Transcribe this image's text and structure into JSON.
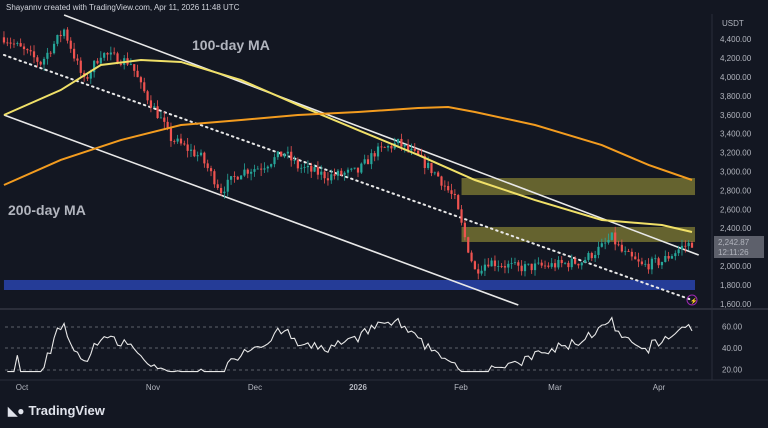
{
  "header": "Shayannv created with TradingView.com, Apr 11, 2026 11:48 UTC",
  "brand": "TradingView",
  "currency": "USDT",
  "last_price": "2,242.87",
  "countdown": "12:11:26",
  "chart_data": {
    "type": "candlestick",
    "price_axis_ticks": [
      "4,400.00",
      "4,200.00",
      "4,000.00",
      "3,800.00",
      "3,600.00",
      "3,400.00",
      "3,200.00",
      "3,000.00",
      "2,800.00",
      "2,600.00",
      "2,400.00",
      "2,000.00",
      "1,800.00",
      "1,600.00"
    ],
    "rsi_axis_ticks": [
      "60.00",
      "40.00",
      "20.00"
    ],
    "time_axis_ticks": [
      "Oct",
      "Nov",
      "Dec",
      "2026",
      "Feb",
      "Mar",
      "Apr"
    ],
    "close_path": [
      [
        "2025-09-17",
        4420
      ],
      [
        "2025-09-22",
        4300
      ],
      [
        "2025-09-28",
        4150
      ],
      [
        "2025-10-05",
        4500
      ],
      [
        "2025-10-11",
        3950
      ],
      [
        "2025-10-16",
        4250
      ],
      [
        "2025-10-25",
        4150
      ],
      [
        "2025-10-28",
        3900
      ],
      [
        "2025-11-03",
        3550
      ],
      [
        "2025-11-06",
        3350
      ],
      [
        "2025-11-15",
        3150
      ],
      [
        "2025-11-21",
        2800
      ],
      [
        "2025-11-27",
        3000
      ],
      [
        "2025-12-03",
        3050
      ],
      [
        "2025-12-10",
        3200
      ],
      [
        "2025-12-14",
        3050
      ],
      [
        "2025-12-23",
        2950
      ],
      [
        "2026-01-01",
        3000
      ],
      [
        "2026-01-06",
        3200
      ],
      [
        "2026-01-13",
        3300
      ],
      [
        "2026-01-19",
        3150
      ],
      [
        "2026-01-25",
        2950
      ],
      [
        "2026-01-30",
        2700
      ],
      [
        "2026-02-02",
        2300
      ],
      [
        "2026-02-05",
        1950
      ],
      [
        "2026-02-09",
        2050
      ],
      [
        "2026-02-18",
        1980
      ],
      [
        "2026-02-26",
        2000
      ],
      [
        "2026-03-03",
        2020
      ],
      [
        "2026-03-09",
        2050
      ],
      [
        "2026-03-15",
        2200
      ],
      [
        "2026-03-18",
        2300
      ],
      [
        "2026-03-21",
        2150
      ],
      [
        "2026-03-27",
        2000
      ],
      [
        "2026-04-02",
        2050
      ],
      [
        "2026-04-08",
        2200
      ],
      [
        "2026-04-11",
        2243
      ]
    ],
    "ma100": {
      "label": "100-day MA",
      "color": "#f0e068",
      "points": [
        [
          "2025-09-17",
          3598
        ],
        [
          "2025-10-04",
          3862
        ],
        [
          "2025-10-16",
          4127
        ],
        [
          "2025-10-28",
          4180
        ],
        [
          "2025-11-09",
          4159
        ],
        [
          "2025-11-27",
          3968
        ],
        [
          "2025-12-14",
          3704
        ],
        [
          "2026-01-01",
          3439
        ],
        [
          "2026-01-19",
          3175
        ],
        [
          "2026-02-05",
          2910
        ],
        [
          "2026-02-23",
          2698
        ],
        [
          "2026-03-15",
          2487
        ],
        [
          "2026-04-02",
          2434
        ],
        [
          "2026-04-11",
          2360
        ]
      ]
    },
    "ma200": {
      "label": "200-day MA",
      "color": "#f39c1f",
      "points": [
        [
          "2025-09-17",
          2857
        ],
        [
          "2025-10-04",
          3122
        ],
        [
          "2025-10-22",
          3333
        ],
        [
          "2025-11-09",
          3492
        ],
        [
          "2025-11-27",
          3545
        ],
        [
          "2025-12-14",
          3598
        ],
        [
          "2026-01-01",
          3630
        ],
        [
          "2026-01-19",
          3672
        ],
        [
          "2026-01-28",
          3683
        ],
        [
          "2026-02-05",
          3630
        ],
        [
          "2026-02-23",
          3492
        ],
        [
          "2026-03-15",
          3280
        ],
        [
          "2026-03-29",
          3069
        ],
        [
          "2026-04-11",
          2910
        ]
      ]
    },
    "channel_upper": [
      [
        "2025-10-05",
        4656
      ],
      [
        "2026-04-13",
        2116
      ]
    ],
    "channel_lower": [
      [
        "2025-09-17",
        3598
      ],
      [
        "2026-02-18",
        1587
      ]
    ],
    "dotted_trendline": [
      [
        "2025-09-17",
        4233
      ],
      [
        "2026-04-11",
        1640
      ]
    ],
    "zones": [
      {
        "from": "2026-02-01",
        "low": 2751,
        "high": 2931,
        "color": "#a9a33a"
      },
      {
        "from": "2026-02-01",
        "low": 2254,
        "high": 2413,
        "color": "#a9a33a"
      },
      {
        "from": "2025-09-17",
        "low": 1746,
        "high": 1852,
        "color": "#2b46b5"
      }
    ],
    "up_color": "#26a69a",
    "down_color": "#ef5350"
  }
}
